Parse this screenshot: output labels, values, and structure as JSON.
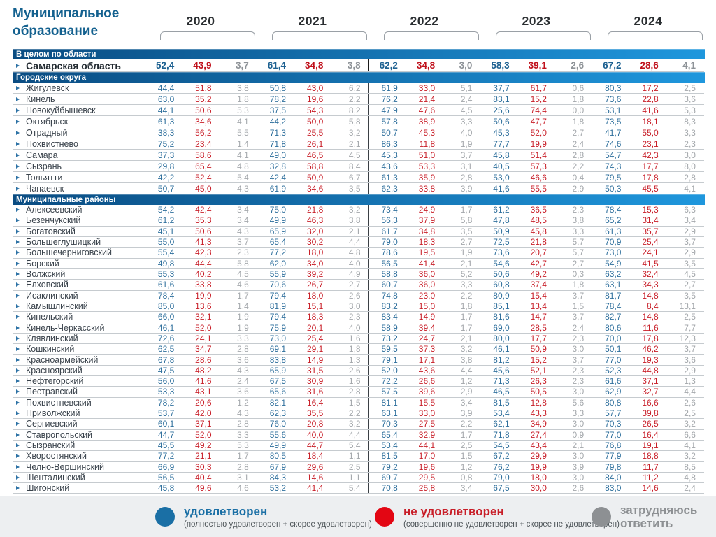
{
  "title": {
    "line1": "Муниципальное",
    "line2": "образование"
  },
  "years": [
    "2020",
    "2021",
    "2022",
    "2023",
    "2024"
  ],
  "year_subcolumns": [
    "удовлетворен",
    "не удовлетворен",
    "затрудняюсь ответить"
  ],
  "sections": [
    {
      "label": "В целом по области",
      "row_style": "lg",
      "rows": [
        {
          "name": "Самарская область",
          "bold": true,
          "values": [
            "52,4",
            "43,9",
            "3,7",
            "61,4",
            "34,8",
            "3,8",
            "62,2",
            "34,8",
            "3,0",
            "58,3",
            "39,1",
            "2,6",
            "67,2",
            "28,6",
            "4,1"
          ]
        }
      ]
    },
    {
      "label": "Городские округа",
      "row_style": "md",
      "rows": [
        {
          "name": "Жигулевск",
          "values": [
            "44,4",
            "51,8",
            "3,8",
            "50,8",
            "43,0",
            "6,2",
            "61,9",
            "33,0",
            "5,1",
            "37,7",
            "61,7",
            "0,6",
            "80,3",
            "17,2",
            "2,5"
          ]
        },
        {
          "name": "Кинель",
          "values": [
            "63,0",
            "35,2",
            "1,8",
            "78,2",
            "19,6",
            "2,2",
            "76,2",
            "21,4",
            "2,4",
            "83,1",
            "15,2",
            "1,8",
            "73,6",
            "22,8",
            "3,6"
          ]
        },
        {
          "name": "Новокуйбышевск",
          "values": [
            "44,1",
            "50,6",
            "5,3",
            "37,5",
            "54,3",
            "8,2",
            "47,9",
            "47,6",
            "4,5",
            "25,6",
            "74,4",
            "0,0",
            "53,1",
            "41,6",
            "5,3"
          ]
        },
        {
          "name": "Октябрьск",
          "values": [
            "61,3",
            "34,6",
            "4,1",
            "44,2",
            "50,0",
            "5,8",
            "57,8",
            "38,9",
            "3,3",
            "50,6",
            "47,7",
            "1,8",
            "73,5",
            "18,1",
            "8,3"
          ]
        },
        {
          "name": "Отрадный",
          "values": [
            "38,3",
            "56,2",
            "5,5",
            "71,3",
            "25,5",
            "3,2",
            "50,7",
            "45,3",
            "4,0",
            "45,3",
            "52,0",
            "2,7",
            "41,7",
            "55,0",
            "3,3"
          ]
        },
        {
          "name": "Похвистнево",
          "values": [
            "75,2",
            "23,4",
            "1,4",
            "71,8",
            "26,1",
            "2,1",
            "86,3",
            "11,8",
            "1,9",
            "77,7",
            "19,9",
            "2,4",
            "74,6",
            "23,1",
            "2,3"
          ]
        },
        {
          "name": "Самара",
          "values": [
            "37,3",
            "58,6",
            "4,1",
            "49,0",
            "46,5",
            "4,5",
            "45,3",
            "51,0",
            "3,7",
            "45,8",
            "51,4",
            "2,8",
            "54,7",
            "42,3",
            "3,0"
          ]
        },
        {
          "name": "Сызрань",
          "values": [
            "29,8",
            "65,4",
            "4,8",
            "32,8",
            "58,8",
            "8,4",
            "43,6",
            "53,3",
            "3,1",
            "40,5",
            "57,3",
            "2,2",
            "74,3",
            "17,7",
            "8,0"
          ]
        },
        {
          "name": "Тольятти",
          "values": [
            "42,2",
            "52,4",
            "5,4",
            "42,4",
            "50,9",
            "6,7",
            "61,3",
            "35,9",
            "2,8",
            "53,0",
            "46,6",
            "0,4",
            "79,5",
            "17,8",
            "2,8"
          ]
        },
        {
          "name": "Чапаевск",
          "values": [
            "50,7",
            "45,0",
            "4,3",
            "61,9",
            "34,6",
            "3,5",
            "62,3",
            "33,8",
            "3,9",
            "41,6",
            "55,5",
            "2,9",
            "50,3",
            "45,5",
            "4,1"
          ]
        }
      ]
    },
    {
      "label": "Муниципальные районы",
      "row_style": "sm",
      "rows": [
        {
          "name": "Алексеевский",
          "values": [
            "54,2",
            "42,4",
            "3,4",
            "75,0",
            "21,8",
            "3,2",
            "73,4",
            "24,9",
            "1,7",
            "61,2",
            "36,5",
            "2,3",
            "78,4",
            "15,3",
            "6,3"
          ]
        },
        {
          "name": "Безенчукский",
          "values": [
            "61,2",
            "35,3",
            "3,4",
            "49,9",
            "46,3",
            "3,8",
            "56,3",
            "37,9",
            "5,8",
            "47,8",
            "48,5",
            "3,8",
            "65,2",
            "31,4",
            "3,4"
          ]
        },
        {
          "name": "Богатовский",
          "values": [
            "45,1",
            "50,6",
            "4,3",
            "65,9",
            "32,0",
            "2,1",
            "61,7",
            "34,8",
            "3,5",
            "50,9",
            "45,8",
            "3,3",
            "61,3",
            "35,7",
            "2,9"
          ]
        },
        {
          "name": "Большеглушицкий",
          "values": [
            "55,0",
            "41,3",
            "3,7",
            "65,4",
            "30,2",
            "4,4",
            "79,0",
            "18,3",
            "2,7",
            "72,5",
            "21,8",
            "5,7",
            "70,9",
            "25,4",
            "3,7"
          ]
        },
        {
          "name": "Большечерниговский",
          "values": [
            "55,4",
            "42,3",
            "2,3",
            "77,2",
            "18,0",
            "4,8",
            "78,6",
            "19,5",
            "1,9",
            "73,6",
            "20,7",
            "5,7",
            "73,0",
            "24,1",
            "2,9"
          ]
        },
        {
          "name": "Борский",
          "values": [
            "49,8",
            "44,4",
            "5,8",
            "62,0",
            "34,0",
            "4,0",
            "56,5",
            "41,4",
            "2,1",
            "54,6",
            "42,7",
            "2,7",
            "54,9",
            "41,5",
            "3,5"
          ]
        },
        {
          "name": "Волжский",
          "values": [
            "55,3",
            "40,2",
            "4,5",
            "55,9",
            "39,2",
            "4,9",
            "58,8",
            "36,0",
            "5,2",
            "50,6",
            "49,2",
            "0,3",
            "63,2",
            "32,4",
            "4,5"
          ]
        },
        {
          "name": "Елховский",
          "values": [
            "61,6",
            "33,8",
            "4,6",
            "70,6",
            "26,7",
            "2,7",
            "60,7",
            "36,0",
            "3,3",
            "60,8",
            "37,4",
            "1,8",
            "63,1",
            "34,3",
            "2,7"
          ]
        },
        {
          "name": "Исаклинский",
          "values": [
            "78,4",
            "19,9",
            "1,7",
            "79,4",
            "18,0",
            "2,6",
            "74,8",
            "23,0",
            "2,2",
            "80,9",
            "15,4",
            "3,7",
            "81,7",
            "14,8",
            "3,5"
          ]
        },
        {
          "name": "Камышлинский",
          "values": [
            "85,0",
            "13,6",
            "1,4",
            "81,9",
            "15,1",
            "3,0",
            "83,2",
            "15,0",
            "1,8",
            "85,1",
            "13,4",
            "1,5",
            "78,4",
            "8,4",
            "13,1"
          ]
        },
        {
          "name": "Кинельский",
          "values": [
            "66,0",
            "32,1",
            "1,9",
            "79,4",
            "18,3",
            "2,3",
            "83,4",
            "14,9",
            "1,7",
            "81,6",
            "14,7",
            "3,7",
            "82,7",
            "14,8",
            "2,5"
          ]
        },
        {
          "name": "Кинель-Черкасский",
          "values": [
            "46,1",
            "52,0",
            "1,9",
            "75,9",
            "20,1",
            "4,0",
            "58,9",
            "39,4",
            "1,7",
            "69,0",
            "28,5",
            "2,4",
            "80,6",
            "11,6",
            "7,7"
          ]
        },
        {
          "name": "Клявлинский",
          "values": [
            "72,6",
            "24,1",
            "3,3",
            "73,0",
            "25,4",
            "1,6",
            "73,2",
            "24,7",
            "2,1",
            "80,0",
            "17,7",
            "2,3",
            "70,0",
            "17,8",
            "12,3"
          ]
        },
        {
          "name": "Кошкинский",
          "values": [
            "62,5",
            "34,7",
            "2,8",
            "69,1",
            "29,1",
            "1,8",
            "59,5",
            "37,3",
            "3,2",
            "46,1",
            "50,9",
            "3,0",
            "50,1",
            "46,2",
            "3,7"
          ]
        },
        {
          "name": "Красноармейский",
          "values": [
            "67,8",
            "28,6",
            "3,6",
            "83,8",
            "14,9",
            "1,3",
            "79,1",
            "17,1",
            "3,8",
            "81,2",
            "15,2",
            "3,7",
            "77,0",
            "19,3",
            "3,6"
          ]
        },
        {
          "name": "Красноярский",
          "values": [
            "47,5",
            "48,2",
            "4,3",
            "65,9",
            "31,5",
            "2,6",
            "52,0",
            "43,6",
            "4,4",
            "45,6",
            "52,1",
            "2,3",
            "52,3",
            "44,8",
            "2,9"
          ]
        },
        {
          "name": "Нефтегорский",
          "values": [
            "56,0",
            "41,6",
            "2,4",
            "67,5",
            "30,9",
            "1,6",
            "72,2",
            "26,6",
            "1,2",
            "71,3",
            "26,3",
            "2,3",
            "61,6",
            "37,1",
            "1,3"
          ]
        },
        {
          "name": "Пестравский",
          "values": [
            "53,3",
            "43,1",
            "3,6",
            "65,6",
            "31,6",
            "2,8",
            "57,5",
            "39,6",
            "2,9",
            "46,5",
            "50,5",
            "3,0",
            "62,9",
            "32,7",
            "4,4"
          ]
        },
        {
          "name": "Похвистневский",
          "values": [
            "78,2",
            "20,6",
            "1,2",
            "82,1",
            "16,4",
            "1,5",
            "81,1",
            "15,5",
            "3,4",
            "81,5",
            "12,8",
            "5,6",
            "80,8",
            "16,6",
            "2,6"
          ]
        },
        {
          "name": "Приволжский",
          "values": [
            "53,7",
            "42,0",
            "4,3",
            "62,3",
            "35,5",
            "2,2",
            "63,1",
            "33,0",
            "3,9",
            "53,4",
            "43,3",
            "3,3",
            "57,7",
            "39,8",
            "2,5"
          ]
        },
        {
          "name": "Сергиевский",
          "values": [
            "60,1",
            "37,1",
            "2,8",
            "76,0",
            "20,8",
            "3,2",
            "70,3",
            "27,5",
            "2,2",
            "62,1",
            "34,9",
            "3,0",
            "70,3",
            "26,5",
            "3,2"
          ]
        },
        {
          "name": "Ставропольский",
          "values": [
            "44,7",
            "52,0",
            "3,3",
            "55,6",
            "40,0",
            "4,4",
            "65,4",
            "32,9",
            "1,7",
            "71,8",
            "27,4",
            "0,9",
            "77,0",
            "16,4",
            "6,6"
          ]
        },
        {
          "name": "Сызранский",
          "values": [
            "45,5",
            "49,2",
            "5,3",
            "49,9",
            "44,7",
            "5,4",
            "53,4",
            "44,1",
            "2,5",
            "54,5",
            "43,4",
            "2,1",
            "76,8",
            "19,1",
            "4,1"
          ]
        },
        {
          "name": "Хворостянский",
          "values": [
            "77,2",
            "21,1",
            "1,7",
            "80,5",
            "18,4",
            "1,1",
            "81,5",
            "17,0",
            "1,5",
            "67,2",
            "29,9",
            "3,0",
            "77,9",
            "18,8",
            "3,2"
          ]
        },
        {
          "name": "Челно-Вершинский",
          "values": [
            "66,9",
            "30,3",
            "2,8",
            "67,9",
            "29,6",
            "2,5",
            "79,2",
            "19,6",
            "1,2",
            "76,2",
            "19,9",
            "3,9",
            "79,8",
            "11,7",
            "8,5"
          ]
        },
        {
          "name": "Шенталинский",
          "values": [
            "56,5",
            "40,4",
            "3,1",
            "84,3",
            "14,6",
            "1,1",
            "69,7",
            "29,5",
            "0,8",
            "79,0",
            "18,0",
            "3,0",
            "84,0",
            "11,2",
            "4,8"
          ]
        },
        {
          "name": "Шигонский",
          "values": [
            "45,8",
            "49,6",
            "4,6",
            "53,2",
            "41,4",
            "5,4",
            "70,8",
            "25,8",
            "3,4",
            "67,5",
            "30,0",
            "2,6",
            "83,0",
            "14,6",
            "2,4"
          ]
        }
      ]
    }
  ],
  "legend": [
    {
      "id": "satisfied",
      "label": "удовлетворен",
      "sublabel": "(полностью удовлетворен + скорее удовлетворен)",
      "color": "#1a6fa5",
      "label_color": "#1a6fa5"
    },
    {
      "id": "not-satisfied",
      "label": "не удовлетворен",
      "sublabel": "(совершенно не удовлетворен + скорее не удовлетворен)",
      "color": "#e30613",
      "label_color": "#c81e28"
    },
    {
      "id": "undecided",
      "label": "затрудняюсь ответить",
      "sublabel": "",
      "color": "#8d9093",
      "label_color": "#8d9093"
    }
  ],
  "colors": {
    "satisfied": "#2e6f9c",
    "not_satisfied": "#c81e28",
    "undecided": "#a3a7ab",
    "section_bar_left": "#0a4c82",
    "section_bar_right": "#1f97dd",
    "title": "#14618f"
  }
}
